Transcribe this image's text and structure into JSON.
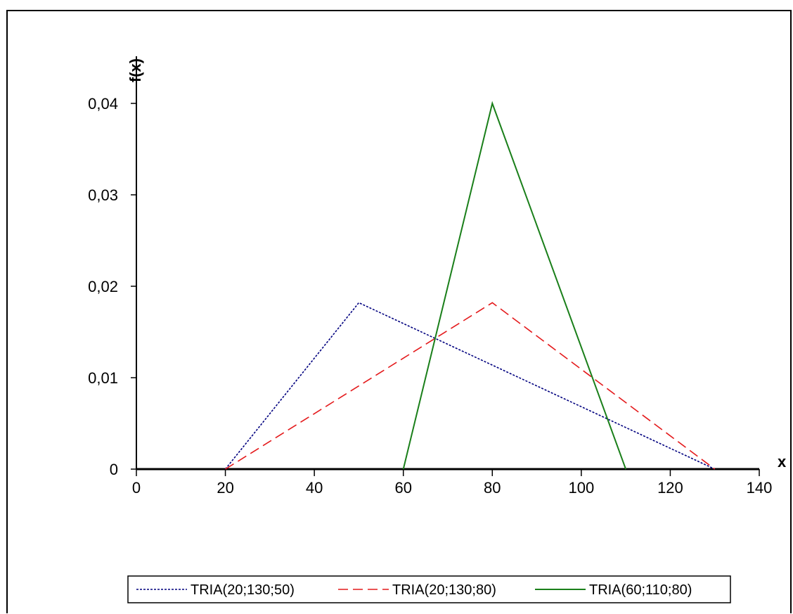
{
  "chart_data": {
    "type": "line",
    "xlabel": "x",
    "ylabel": "f(x)",
    "xlim": [
      0,
      140
    ],
    "ylim": [
      0,
      0.04
    ],
    "x_ticks": [
      0,
      20,
      40,
      60,
      80,
      100,
      120,
      140
    ],
    "x_tick_labels": [
      "0",
      "20",
      "40",
      "60",
      "80",
      "100",
      "120",
      "140"
    ],
    "y_ticks": [
      0,
      0.01,
      0.02,
      0.03,
      0.04
    ],
    "y_tick_labels": [
      "0",
      "0,01",
      "0,02",
      "0,03",
      "0,04"
    ],
    "grid": false,
    "legend_position": "bottom",
    "series": [
      {
        "name": "TRIA(20;130;50)",
        "color": "#00007f",
        "dash": "dotted",
        "x": [
          20,
          50,
          130
        ],
        "y": [
          0,
          0.0182,
          0
        ]
      },
      {
        "name": "TRIA(20;130;80)",
        "color": "#e41a1c",
        "dash": "dashed",
        "x": [
          20,
          80,
          130
        ],
        "y": [
          0,
          0.0182,
          0
        ]
      },
      {
        "name": "TRIA(60;110;80)",
        "color": "#1a7f1a",
        "dash": "solid",
        "x": [
          60,
          80,
          110
        ],
        "y": [
          0,
          0.04,
          0
        ]
      }
    ]
  }
}
